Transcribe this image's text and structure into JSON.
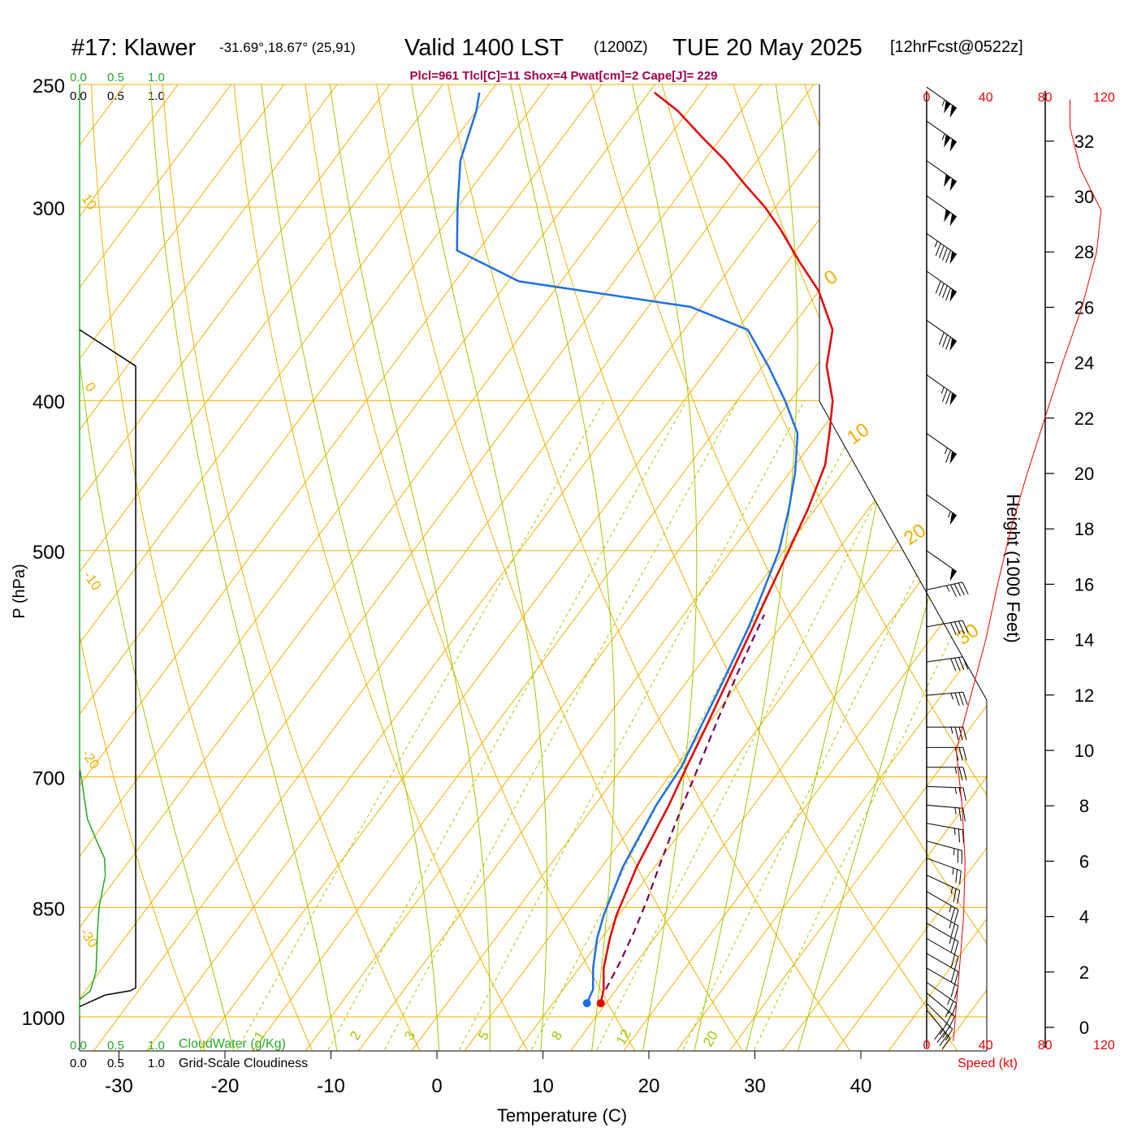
{
  "header": {
    "station": "#17: Klawer",
    "coords": "-31.69°,18.67° (25,91)",
    "valid_prefix": "Valid 1400 LST",
    "valid_z": "(1200Z)",
    "valid_date": "TUE 20 May 2025",
    "forecast": "[12hrFcst@0522z]",
    "params": "Plcl=961 Tlcl[C]=11 Shox=4 Pwat[cm]=2 Cape[J]= 229"
  },
  "colors": {
    "temperature": "#e60000",
    "dewpoint": "#1e6fe6",
    "parcel": "#7a0058",
    "isotherm": "#f0b000",
    "adiabat": "#a0c800",
    "cloudwater": "#22aa22",
    "params": "#a0004a",
    "speed": "#ee0000"
  },
  "chart_data": {
    "type": "line",
    "subtype": "skew-t-logp",
    "xlabel": "Temperature (C)",
    "ylabel": "P (hPa)",
    "right_ylabel": "Height (1000 Feet)",
    "x_ticks": [
      "-30",
      "-20",
      "-10",
      "0",
      "10",
      "20",
      "30",
      "40"
    ],
    "x_tick_values": [
      -30,
      -20,
      -10,
      0,
      10,
      20,
      30,
      40
    ],
    "pressure_levels": [
      {
        "p": 250,
        "label": "250"
      },
      {
        "p": 300,
        "label": "300"
      },
      {
        "p": 400,
        "label": "400"
      },
      {
        "p": 500,
        "label": "500"
      },
      {
        "p": 700,
        "label": "700"
      },
      {
        "p": 850,
        "label": "850"
      },
      {
        "p": 1000,
        "label": "1000"
      }
    ],
    "height_ticks": [
      "0",
      "2",
      "4",
      "6",
      "8",
      "10",
      "12",
      "14",
      "16",
      "18",
      "20",
      "22",
      "24",
      "26",
      "28",
      "30",
      "32"
    ],
    "isotherm_labels": [
      "10",
      "0",
      "-10",
      "-20",
      "-30",
      "0",
      "10",
      "20",
      "30"
    ],
    "mixing_ratio_labels": [
      "1",
      "2",
      "3",
      "5",
      "8",
      "12",
      "20"
    ],
    "cloud_scale_top_green": [
      "0.0",
      "0.5",
      "1.0"
    ],
    "cloud_scale_top_black": [
      "0.0",
      "0.5",
      "1.0"
    ],
    "cloud_scale_bottom_green": [
      "0.0",
      "0.5",
      "1.0"
    ],
    "cloud_scale_bottom_black": [
      "0.0",
      "0.5",
      "1.0"
    ],
    "cloudwater_label": "CloudWater (g/Kg)",
    "cloudiness_label": "Grid-Scale Cloudiness",
    "speed_ticks_top": [
      "0",
      "40",
      "80",
      "120"
    ],
    "speed_ticks_bottom": [
      "0",
      "40",
      "80",
      "120"
    ],
    "speed_label": "Speed (kt)",
    "series": [
      {
        "name": "temperature",
        "points": [
          [
            14.5,
            980
          ],
          [
            13.8,
            960
          ],
          [
            12.3,
            930
          ],
          [
            10.8,
            890
          ],
          [
            9.8,
            860
          ],
          [
            8.3,
            800
          ],
          [
            7.0,
            730
          ],
          [
            6.0,
            690
          ],
          [
            5.0,
            650
          ],
          [
            3.6,
            600
          ],
          [
            2.4,
            560
          ],
          [
            1.4,
            530
          ],
          [
            0.4,
            500
          ],
          [
            -0.7,
            470
          ],
          [
            -2.2,
            440
          ],
          [
            -4.0,
            420
          ],
          [
            -6.0,
            400
          ],
          [
            -9.0,
            380
          ],
          [
            -11.0,
            360
          ],
          [
            -15.0,
            340
          ],
          [
            -19.0,
            325
          ],
          [
            -23.0,
            310
          ],
          [
            -26.0,
            300
          ],
          [
            -29.5,
            290
          ],
          [
            -33.0,
            280
          ],
          [
            -37.0,
            270
          ],
          [
            -41.0,
            260
          ],
          [
            -44.5,
            253
          ]
        ]
      },
      {
        "name": "dewpoint",
        "points": [
          [
            13.2,
            980
          ],
          [
            12.8,
            960
          ],
          [
            11.3,
            930
          ],
          [
            9.6,
            890
          ],
          [
            8.6,
            860
          ],
          [
            7.0,
            800
          ],
          [
            5.8,
            730
          ],
          [
            5.5,
            690
          ],
          [
            4.5,
            650
          ],
          [
            3.2,
            600
          ],
          [
            2.0,
            560
          ],
          [
            0.8,
            530
          ],
          [
            -0.5,
            500
          ],
          [
            -2.5,
            470
          ],
          [
            -4.5,
            445
          ],
          [
            -7.0,
            420
          ],
          [
            -10.5,
            400
          ],
          [
            -14.5,
            380
          ],
          [
            -19.0,
            360
          ],
          [
            -26.0,
            348
          ],
          [
            -44.0,
            335
          ],
          [
            -52.0,
            320
          ],
          [
            -55.0,
            300
          ],
          [
            -58.0,
            280
          ],
          [
            -60.0,
            260
          ],
          [
            -61.0,
            253
          ]
        ]
      },
      {
        "name": "parcel",
        "points": [
          [
            14.0,
            960
          ],
          [
            13.4,
            920
          ],
          [
            12.6,
            880
          ],
          [
            11.6,
            840
          ],
          [
            10.4,
            800
          ],
          [
            9.2,
            760
          ],
          [
            8.0,
            720
          ],
          [
            6.8,
            680
          ],
          [
            5.5,
            640
          ],
          [
            4.2,
            600
          ],
          [
            3.4,
            575
          ],
          [
            2.6,
            550
          ]
        ]
      },
      {
        "name": "cloudwater",
        "points": [
          [
            0.0,
            1000
          ],
          [
            0.0,
            975
          ],
          [
            0.14,
            962
          ],
          [
            0.21,
            935
          ],
          [
            0.23,
            880
          ],
          [
            0.25,
            850
          ],
          [
            0.33,
            810
          ],
          [
            0.32,
            790
          ],
          [
            0.22,
            770
          ],
          [
            0.1,
            745
          ],
          [
            0.04,
            710
          ],
          [
            0.0,
            690
          ],
          [
            0.0,
            250
          ]
        ]
      },
      {
        "name": "cloudiness",
        "points": [
          [
            0.0,
            985
          ],
          [
            0.33,
            968
          ],
          [
            0.65,
            962
          ],
          [
            0.72,
            958
          ],
          [
            0.72,
            380
          ],
          [
            0.0,
            360
          ]
        ]
      },
      {
        "name": "wind_speed",
        "points": [
          [
            18,
            -0.5
          ],
          [
            22,
            2
          ],
          [
            25,
            4
          ],
          [
            26,
            6
          ],
          [
            24,
            8
          ],
          [
            20,
            10
          ],
          [
            30,
            12
          ],
          [
            40,
            14
          ],
          [
            48,
            16
          ],
          [
            57,
            18
          ],
          [
            68,
            20
          ],
          [
            80,
            22
          ],
          [
            92,
            24
          ],
          [
            105,
            26
          ],
          [
            115,
            28
          ],
          [
            118,
            29.5
          ],
          [
            104,
            31
          ],
          [
            97,
            32.5
          ],
          [
            97,
            33.5
          ]
        ]
      }
    ],
    "wind_barbs": [
      {
        "p": 990,
        "dir": 320,
        "speed": 40
      },
      {
        "p": 980,
        "dir": 315,
        "speed": 30
      },
      {
        "p": 965,
        "dir": 310,
        "speed": 25
      },
      {
        "p": 950,
        "dir": 305,
        "speed": 25
      },
      {
        "p": 930,
        "dir": 300,
        "speed": 20
      },
      {
        "p": 910,
        "dir": 300,
        "speed": 20
      },
      {
        "p": 890,
        "dir": 300,
        "speed": 20
      },
      {
        "p": 870,
        "dir": 300,
        "speed": 25
      },
      {
        "p": 850,
        "dir": 300,
        "speed": 25
      },
      {
        "p": 830,
        "dir": 300,
        "speed": 25
      },
      {
        "p": 810,
        "dir": 295,
        "speed": 25
      },
      {
        "p": 790,
        "dir": 290,
        "speed": 25
      },
      {
        "p": 770,
        "dir": 285,
        "speed": 25
      },
      {
        "p": 750,
        "dir": 280,
        "speed": 25
      },
      {
        "p": 730,
        "dir": 275,
        "speed": 25
      },
      {
        "p": 710,
        "dir": 272,
        "speed": 25
      },
      {
        "p": 690,
        "dir": 270,
        "speed": 25
      },
      {
        "p": 670,
        "dir": 270,
        "speed": 30
      },
      {
        "p": 650,
        "dir": 270,
        "speed": 35
      },
      {
        "p": 620,
        "dir": 265,
        "speed": 35
      },
      {
        "p": 590,
        "dir": 262,
        "speed": 40
      },
      {
        "p": 560,
        "dir": 260,
        "speed": 40
      },
      {
        "p": 530,
        "dir": 258,
        "speed": 45
      },
      {
        "p": 500,
        "dir": 305,
        "speed": 50
      },
      {
        "p": 460,
        "dir": 305,
        "speed": 55
      },
      {
        "p": 420,
        "dir": 305,
        "speed": 65
      },
      {
        "p": 385,
        "dir": 305,
        "speed": 75
      },
      {
        "p": 355,
        "dir": 305,
        "speed": 80
      },
      {
        "p": 330,
        "dir": 305,
        "speed": 90
      },
      {
        "p": 312,
        "dir": 305,
        "speed": 95
      },
      {
        "p": 295,
        "dir": 305,
        "speed": 100
      },
      {
        "p": 280,
        "dir": 305,
        "speed": 100
      },
      {
        "p": 264,
        "dir": 305,
        "speed": 105
      },
      {
        "p": 251,
        "dir": 305,
        "speed": 105
      }
    ]
  }
}
